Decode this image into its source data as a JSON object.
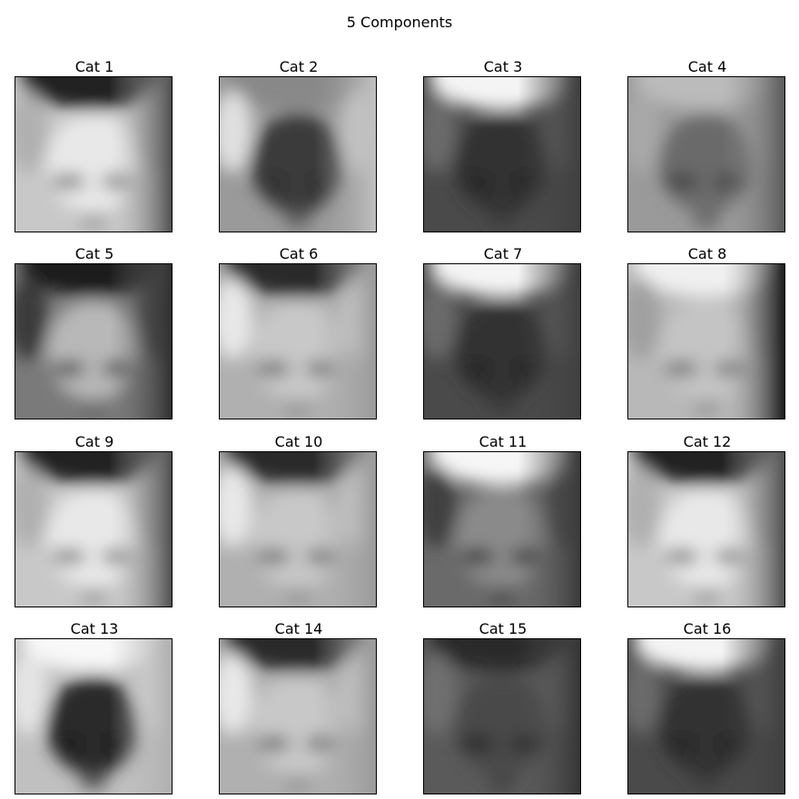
{
  "figure": {
    "title": "5 Components"
  },
  "panels": [
    {
      "title": "Cat 1",
      "tone": "light"
    },
    {
      "title": "Cat 2",
      "tone": "dark-center"
    },
    {
      "title": "Cat 3",
      "tone": "dark-bright-top"
    },
    {
      "title": "Cat 4",
      "tone": "mid"
    },
    {
      "title": "Cat 5",
      "tone": "mid-dark-edges"
    },
    {
      "title": "Cat 6",
      "tone": "dark-top-light-bottom"
    },
    {
      "title": "Cat 7",
      "tone": "dark-bright-top"
    },
    {
      "title": "Cat 8",
      "tone": "light-dark-right"
    },
    {
      "title": "Cat 9",
      "tone": "light"
    },
    {
      "title": "Cat 10",
      "tone": "dark-top-light-bottom"
    },
    {
      "title": "Cat 11",
      "tone": "mid-bright-top"
    },
    {
      "title": "Cat 12",
      "tone": "light"
    },
    {
      "title": "Cat 13",
      "tone": "light-dark-center"
    },
    {
      "title": "Cat 14",
      "tone": "dark-top-light-bottom"
    },
    {
      "title": "Cat 15",
      "tone": "dark"
    },
    {
      "title": "Cat 16",
      "tone": "dark-bright-top"
    }
  ]
}
